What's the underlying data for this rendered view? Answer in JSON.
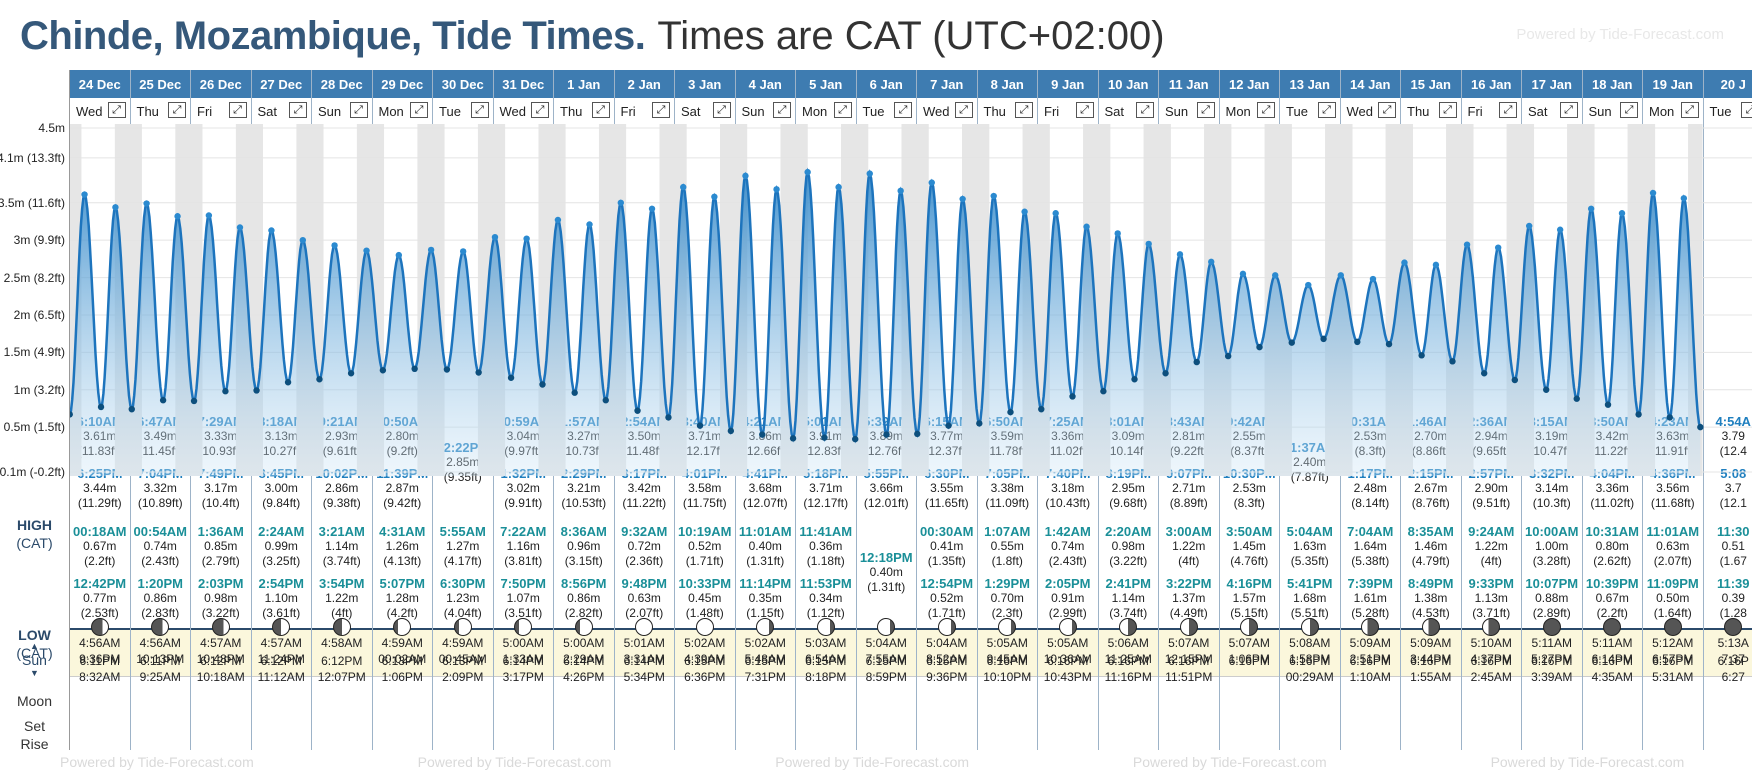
{
  "title": {
    "location": "Chinde, Mozambique, Tide Times.",
    "timezone": "Times are CAT (UTC+02:00)"
  },
  "powered_by": "Powered by Tide-Forecast.com",
  "axis_labels": [
    "4.5m",
    "4.1m (13.3ft)",
    "3.5m (11.6ft)",
    "3m (9.9ft)",
    "2.5m (8.2ft)",
    "2m (6.5ft)",
    "1.5m (4.9ft)",
    "1m (3.2ft)",
    "0.5m (1.5ft)",
    "-0.1m (-0.2ft)"
  ],
  "row_labels": {
    "high": "HIGH",
    "high_tz": "(CAT)",
    "low": "LOW",
    "low_tz": "(CAT)",
    "sun": "Sun",
    "moon": "Moon",
    "set": "Set",
    "rise": "Rise"
  },
  "days": [
    {
      "date": "24 Dec",
      "dow": "Wed",
      "h1": [
        "6:10AM",
        "3.61m",
        "(11.83ft)"
      ],
      "h2": [
        "6:25PM",
        "3.44m",
        "(11.29ft)"
      ],
      "l1": [
        "00:18AM",
        "0.67m",
        "(2.2ft)"
      ],
      "l2": [
        "12:42PM",
        "0.77m",
        "(2.53ft)"
      ],
      "sunrise": "4:56AM",
      "sunset": "6:11PM",
      "moonset": "9:36PM",
      "moonrise": "8:32AM",
      "moon": "waxing-crescent"
    },
    {
      "date": "25 Dec",
      "dow": "Thu",
      "h1": [
        "6:47AM",
        "3.49m",
        "(11.45ft)"
      ],
      "h2": [
        "7:04PM",
        "3.32m",
        "(10.89ft)"
      ],
      "l1": [
        "00:54AM",
        "0.74m",
        "(2.43ft)"
      ],
      "l2": [
        "1:20PM",
        "0.86m",
        "(2.83ft)"
      ],
      "sunrise": "4:56AM",
      "sunset": "6:11PM",
      "moonset": "10:13PM",
      "moonrise": "9:25AM",
      "moon": "waxing-crescent"
    },
    {
      "date": "26 Dec",
      "dow": "Fri",
      "h1": [
        "7:29AM",
        "3.33m",
        "(10.93ft)"
      ],
      "h2": [
        "7:49PM",
        "3.17m",
        "(10.4ft)"
      ],
      "l1": [
        "1:36AM",
        "0.85m",
        "(2.79ft)"
      ],
      "l2": [
        "2:03PM",
        "0.98m",
        "(3.22ft)"
      ],
      "sunrise": "4:57AM",
      "sunset": "6:12PM",
      "moonset": "10:48PM",
      "moonrise": "10:18AM",
      "moon": "waxing-crescent"
    },
    {
      "date": "27 Dec",
      "dow": "Sat",
      "h1": [
        "8:18AM",
        "3.13m",
        "(10.27ft)"
      ],
      "h2": [
        "8:45PM",
        "3.00m",
        "(9.84ft)"
      ],
      "l1": [
        "2:24AM",
        "0.99m",
        "(3.25ft)"
      ],
      "l2": [
        "2:54PM",
        "1.10m",
        "(3.61ft)"
      ],
      "sunrise": "4:57AM",
      "sunset": "6:12PM",
      "moonset": "11:24PM",
      "moonrise": "11:12AM",
      "moon": "first-quarter"
    },
    {
      "date": "28 Dec",
      "dow": "Sun",
      "h1": [
        "9:21AM",
        "2.93m",
        "(9.61ft)"
      ],
      "h2": [
        "10:02PM",
        "2.86m",
        "(9.38ft)"
      ],
      "l1": [
        "3:21AM",
        "1.14m",
        "(3.74ft)"
      ],
      "l2": [
        "3:54PM",
        "1.22m",
        "(4ft)"
      ],
      "sunrise": "4:58AM",
      "sunset": "6:12PM",
      "moonset": "",
      "moonrise": "12:07PM",
      "moon": "first-quarter"
    },
    {
      "date": "29 Dec",
      "dow": "Mon",
      "h1": [
        "10:50AM",
        "2.80m",
        "(9.2ft)"
      ],
      "h2": [
        "11:39PM",
        "2.87m",
        "(9.42ft)"
      ],
      "l1": [
        "4:31AM",
        "1.26m",
        "(4.13ft)"
      ],
      "l2": [
        "5:07PM",
        "1.28m",
        "(4.2ft)"
      ],
      "sunrise": "4:59AM",
      "sunset": "6:13PM",
      "moonset": "00:02AM",
      "moonrise": "1:06PM",
      "moon": "waxing-gibbous"
    },
    {
      "date": "30 Dec",
      "dow": "Tue",
      "h1": [
        "12:22PM",
        "2.85m",
        "(9.35ft)"
      ],
      "h2": null,
      "l1": [
        "5:55AM",
        "1.27m",
        "(4.17ft)"
      ],
      "l2": [
        "6:30PM",
        "1.23m",
        "(4.04ft)"
      ],
      "sunrise": "4:59AM",
      "sunset": "6:13PM",
      "moonset": "00:45AM",
      "moonrise": "2:09PM",
      "moon": "waxing-gibbous"
    },
    {
      "date": "31 Dec",
      "dow": "Wed",
      "h1": [
        "00:59AM",
        "3.04m",
        "(9.97ft)"
      ],
      "h2": [
        "1:32PM",
        "3.02m",
        "(9.91ft)"
      ],
      "l1": [
        "7:22AM",
        "1.16m",
        "(3.81ft)"
      ],
      "l2": [
        "7:50PM",
        "1.07m",
        "(3.51ft)"
      ],
      "sunrise": "5:00AM",
      "sunset": "6:14PM",
      "moonset": "1:33AM",
      "moonrise": "3:17PM",
      "moon": "waxing-gibbous"
    },
    {
      "date": "1 Jan",
      "dow": "Thu",
      "h1": [
        "1:57AM",
        "3.27m",
        "(10.73ft)"
      ],
      "h2": [
        "2:29PM",
        "3.21m",
        "(10.53ft)"
      ],
      "l1": [
        "8:36AM",
        "0.96m",
        "(3.15ft)"
      ],
      "l2": [
        "8:56PM",
        "0.86m",
        "(2.82ft)"
      ],
      "sunrise": "5:00AM",
      "sunset": "6:14PM",
      "moonset": "2:29AM",
      "moonrise": "4:26PM",
      "moon": "waxing-gibbous"
    },
    {
      "date": "2 Jan",
      "dow": "Fri",
      "h1": [
        "2:54AM",
        "3.50m",
        "(11.48ft)"
      ],
      "h2": [
        "3:17PM",
        "3.42m",
        "(11.22ft)"
      ],
      "l1": [
        "9:32AM",
        "0.72m",
        "(2.36ft)"
      ],
      "l2": [
        "9:48PM",
        "0.63m",
        "(2.07ft)"
      ],
      "sunrise": "5:01AM",
      "sunset": "6:14PM",
      "moonset": "3:31AM",
      "moonrise": "5:34PM",
      "moon": "full"
    },
    {
      "date": "3 Jan",
      "dow": "Sat",
      "h1": [
        "3:40AM",
        "3.71m",
        "(12.17ft)"
      ],
      "h2": [
        "4:01PM",
        "3.58m",
        "(11.75ft)"
      ],
      "l1": [
        "10:19AM",
        "0.52m",
        "(1.71ft)"
      ],
      "l2": [
        "10:33PM",
        "0.45m",
        "(1.48ft)"
      ],
      "sunrise": "5:02AM",
      "sunset": "6:15PM",
      "moonset": "4:39AM",
      "moonrise": "6:36PM",
      "moon": "full"
    },
    {
      "date": "4 Jan",
      "dow": "Sun",
      "h1": [
        "4:21AM",
        "3.86m",
        "(12.66ft)"
      ],
      "h2": [
        "4:41PM",
        "3.68m",
        "(12.07ft)"
      ],
      "l1": [
        "11:01AM",
        "0.40m",
        "(1.31ft)"
      ],
      "l2": [
        "11:14PM",
        "0.35m",
        "(1.15ft)"
      ],
      "sunrise": "5:02AM",
      "sunset": "6:15PM",
      "moonset": "5:48AM",
      "moonrise": "7:31PM",
      "moon": "waning-gibbous"
    },
    {
      "date": "5 Jan",
      "dow": "Mon",
      "h1": [
        "5:01AM",
        "3.91m",
        "(12.83ft)"
      ],
      "h2": [
        "5:18PM",
        "3.71m",
        "(12.17ft)"
      ],
      "l1": [
        "11:41AM",
        "0.36m",
        "(1.18ft)"
      ],
      "l2": [
        "11:53PM",
        "0.34m",
        "(1.12ft)"
      ],
      "sunrise": "5:03AM",
      "sunset": "6:15PM",
      "moonset": "6:54AM",
      "moonrise": "8:18PM",
      "moon": "waning-gibbous"
    },
    {
      "date": "6 Jan",
      "dow": "Tue",
      "h1": [
        "5:39AM",
        "3.89m",
        "(12.76ft)"
      ],
      "h2": [
        "5:55PM",
        "3.66m",
        "(12.01ft)"
      ],
      "l1": [
        "12:18PM",
        "0.40m",
        "(1.31ft)"
      ],
      "l2": null,
      "sunrise": "5:04AM",
      "sunset": "6:15PM",
      "moonset": "7:55AM",
      "moonrise": "8:59PM",
      "moon": "waning-gibbous"
    },
    {
      "date": "7 Jan",
      "dow": "Wed",
      "h1": [
        "6:15AM",
        "3.77m",
        "(12.37ft)"
      ],
      "h2": [
        "6:30PM",
        "3.55m",
        "(11.65ft)"
      ],
      "l1": [
        "00:30AM",
        "0.41m",
        "(1.35ft)"
      ],
      "l2": [
        "12:54PM",
        "0.52m",
        "(1.71ft)"
      ],
      "sunrise": "5:04AM",
      "sunset": "6:15PM",
      "moonset": "8:52AM",
      "moonrise": "9:36PM",
      "moon": "waning-gibbous"
    },
    {
      "date": "8 Jan",
      "dow": "Thu",
      "h1": [
        "6:50AM",
        "3.59m",
        "(11.78ft)"
      ],
      "h2": [
        "7:05PM",
        "3.38m",
        "(11.09ft)"
      ],
      "l1": [
        "1:07AM",
        "0.55m",
        "(1.8ft)"
      ],
      "l2": [
        "1:29PM",
        "0.70m",
        "(2.3ft)"
      ],
      "sunrise": "5:05AM",
      "sunset": "6:16PM",
      "moonset": "9:45AM",
      "moonrise": "10:10PM",
      "moon": "waning-gibbous"
    },
    {
      "date": "9 Jan",
      "dow": "Fri",
      "h1": [
        "7:25AM",
        "3.36m",
        "(11.02ft)"
      ],
      "h2": [
        "7:40PM",
        "3.18m",
        "(10.43ft)"
      ],
      "l1": [
        "1:42AM",
        "0.74m",
        "(2.43ft)"
      ],
      "l2": [
        "2:05PM",
        "0.91m",
        "(2.99ft)"
      ],
      "sunrise": "5:05AM",
      "sunset": "6:16PM",
      "moonset": "10:36AM",
      "moonrise": "10:43PM",
      "moon": "waning-gibbous"
    },
    {
      "date": "10 Jan",
      "dow": "Sat",
      "h1": [
        "8:01AM",
        "3.09m",
        "(10.14ft)"
      ],
      "h2": [
        "8:19PM",
        "2.95m",
        "(9.68ft)"
      ],
      "l1": [
        "2:20AM",
        "0.98m",
        "(3.22ft)"
      ],
      "l2": [
        "2:41PM",
        "1.14m",
        "(3.74ft)"
      ],
      "sunrise": "5:06AM",
      "sunset": "6:16PM",
      "moonset": "11:25AM",
      "moonrise": "11:16PM",
      "moon": "last-quarter"
    },
    {
      "date": "11 Jan",
      "dow": "Sun",
      "h1": [
        "8:43AM",
        "2.81m",
        "(9.22ft)"
      ],
      "h2": [
        "9:07PM",
        "2.71m",
        "(8.89ft)"
      ],
      "l1": [
        "3:00AM",
        "1.22m",
        "(4ft)"
      ],
      "l2": [
        "3:22PM",
        "1.37m",
        "(4.49ft)"
      ],
      "sunrise": "5:07AM",
      "sunset": "6:16PM",
      "moonset": "12:15PM",
      "moonrise": "11:51PM",
      "moon": "last-quarter"
    },
    {
      "date": "12 Jan",
      "dow": "Mon",
      "h1": [
        "9:42AM",
        "2.55m",
        "(8.37ft)"
      ],
      "h2": [
        "10:30PM",
        "2.53m",
        "(8.3ft)"
      ],
      "l1": [
        "3:50AM",
        "1.45m",
        "(4.76ft)"
      ],
      "l2": [
        "4:16PM",
        "1.57m",
        "(5.15ft)"
      ],
      "sunrise": "5:07AM",
      "sunset": "6:16PM",
      "moonset": "1:06PM",
      "moonrise": "",
      "moon": "last-quarter"
    },
    {
      "date": "13 Jan",
      "dow": "Tue",
      "h1": [
        "11:37AM",
        "2.40m",
        "(7.87ft)"
      ],
      "h2": null,
      "l1": [
        "5:04AM",
        "1.63m",
        "(5.35ft)"
      ],
      "l2": [
        "5:41PM",
        "1.68m",
        "(5.51ft)"
      ],
      "sunrise": "5:08AM",
      "sunset": "6:16PM",
      "moonset": "1:58PM",
      "moonrise": "00:29AM",
      "moon": "last-quarter"
    },
    {
      "date": "14 Jan",
      "dow": "Wed",
      "h1": [
        "00:31AM",
        "2.53m",
        "(8.3ft)"
      ],
      "h2": [
        "1:17PM",
        "2.48m",
        "(8.14ft)"
      ],
      "l1": [
        "7:04AM",
        "1.64m",
        "(5.38ft)"
      ],
      "l2": [
        "7:39PM",
        "1.61m",
        "(5.28ft)"
      ],
      "sunrise": "5:09AM",
      "sunset": "6:16PM",
      "moonset": "2:51PM",
      "moonrise": "1:10AM",
      "moon": "waning-crescent"
    },
    {
      "date": "15 Jan",
      "dow": "Thu",
      "h1": [
        "1:46AM",
        "2.70m",
        "(8.86ft)"
      ],
      "h2": [
        "2:15PM",
        "2.67m",
        "(8.76ft)"
      ],
      "l1": [
        "8:35AM",
        "1.46m",
        "(4.79ft)"
      ],
      "l2": [
        "8:49PM",
        "1.38m",
        "(4.53ft)"
      ],
      "sunrise": "5:09AM",
      "sunset": "6:16PM",
      "moonset": "3:44PM",
      "moonrise": "1:55AM",
      "moon": "waning-crescent"
    },
    {
      "date": "16 Jan",
      "dow": "Fri",
      "h1": [
        "2:36AM",
        "2.94m",
        "(9.65ft)"
      ],
      "h2": [
        "2:57PM",
        "2.90m",
        "(9.51ft)"
      ],
      "l1": [
        "9:24AM",
        "1.22m",
        "(4ft)"
      ],
      "l2": [
        "9:33PM",
        "1.13m",
        "(3.71ft)"
      ],
      "sunrise": "5:10AM",
      "sunset": "6:16PM",
      "moonset": "4:37PM",
      "moonrise": "2:45AM",
      "moon": "waning-crescent"
    },
    {
      "date": "17 Jan",
      "dow": "Sat",
      "h1": [
        "3:15AM",
        "3.19m",
        "(10.47ft)"
      ],
      "h2": [
        "3:32PM",
        "3.14m",
        "(10.3ft)"
      ],
      "l1": [
        "10:00AM",
        "1.00m",
        "(3.28ft)"
      ],
      "l2": [
        "10:07PM",
        "0.88m",
        "(2.89ft)"
      ],
      "sunrise": "5:11AM",
      "sunset": "6:16PM",
      "moonset": "5:27PM",
      "moonrise": "3:39AM",
      "moon": "new"
    },
    {
      "date": "18 Jan",
      "dow": "Sun",
      "h1": [
        "3:50AM",
        "3.42m",
        "(11.22ft)"
      ],
      "h2": [
        "4:04PM",
        "3.36m",
        "(11.02ft)"
      ],
      "l1": [
        "10:31AM",
        "0.80m",
        "(2.62ft)"
      ],
      "l2": [
        "10:39PM",
        "0.67m",
        "(2.2ft)"
      ],
      "sunrise": "5:11AM",
      "sunset": "6:16PM",
      "moonset": "6:14PM",
      "moonrise": "4:35AM",
      "moon": "new"
    },
    {
      "date": "19 Jan",
      "dow": "Mon",
      "h1": [
        "4:23AM",
        "3.63m",
        "(11.91ft)"
      ],
      "h2": [
        "4:36PM",
        "3.56m",
        "(11.68ft)"
      ],
      "l1": [
        "11:01AM",
        "0.63m",
        "(2.07ft)"
      ],
      "l2": [
        "11:09PM",
        "0.50m",
        "(1.64ft)"
      ],
      "sunrise": "5:12AM",
      "sunset": "6:16PM",
      "moonset": "6:57PM",
      "moonrise": "5:31AM",
      "moon": "new"
    },
    {
      "date": "20 J",
      "dow": "Tue",
      "h1": [
        "4:54A",
        "3.79",
        "(12.4"
      ],
      "h2": [
        "5:08",
        "3.7",
        "(12.1"
      ],
      "l1": [
        "11:30",
        "0.51",
        "(1.67"
      ],
      "l2": [
        "11:39",
        "0.39",
        "(1.28"
      ],
      "sunrise": "5:13A",
      "sunset": "6:16P",
      "moonset": "7:37",
      "moonrise": "6:27",
      "moon": "new"
    }
  ]
}
